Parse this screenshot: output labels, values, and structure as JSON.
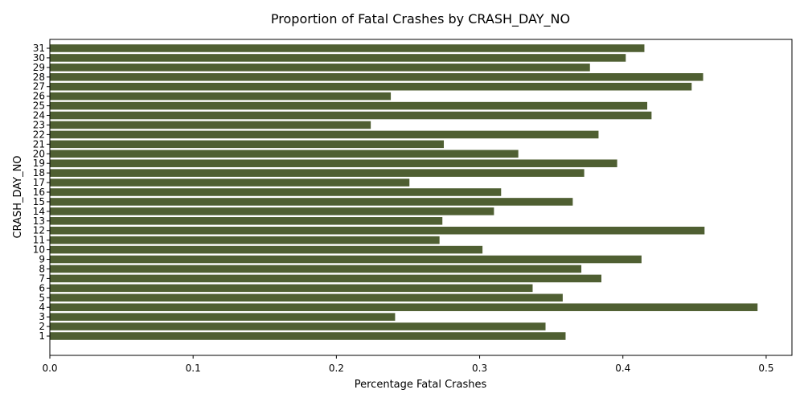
{
  "chart_data": {
    "type": "bar",
    "orientation": "horizontal",
    "title": "Proportion of Fatal Crashes by CRASH_DAY_NO",
    "xlabel": "Percentage Fatal Crashes",
    "ylabel": "CRASH_DAY_NO",
    "xlim": [
      0,
      0.518
    ],
    "xticks": [
      "0.0",
      "0.1",
      "0.2",
      "0.3",
      "0.4",
      "0.5"
    ],
    "grid": false,
    "bar_color": "#4f5f32",
    "categories": [
      "1",
      "2",
      "3",
      "4",
      "5",
      "6",
      "7",
      "8",
      "9",
      "10",
      "11",
      "12",
      "13",
      "14",
      "15",
      "16",
      "17",
      "18",
      "19",
      "20",
      "21",
      "22",
      "23",
      "24",
      "25",
      "26",
      "27",
      "28",
      "29",
      "30",
      "31"
    ],
    "values": [
      0.36,
      0.346,
      0.241,
      0.494,
      0.358,
      0.337,
      0.385,
      0.371,
      0.413,
      0.302,
      0.272,
      0.457,
      0.274,
      0.31,
      0.365,
      0.315,
      0.251,
      0.373,
      0.396,
      0.327,
      0.275,
      0.383,
      0.224,
      0.42,
      0.417,
      0.238,
      0.448,
      0.456,
      0.377,
      0.402,
      0.415
    ]
  }
}
